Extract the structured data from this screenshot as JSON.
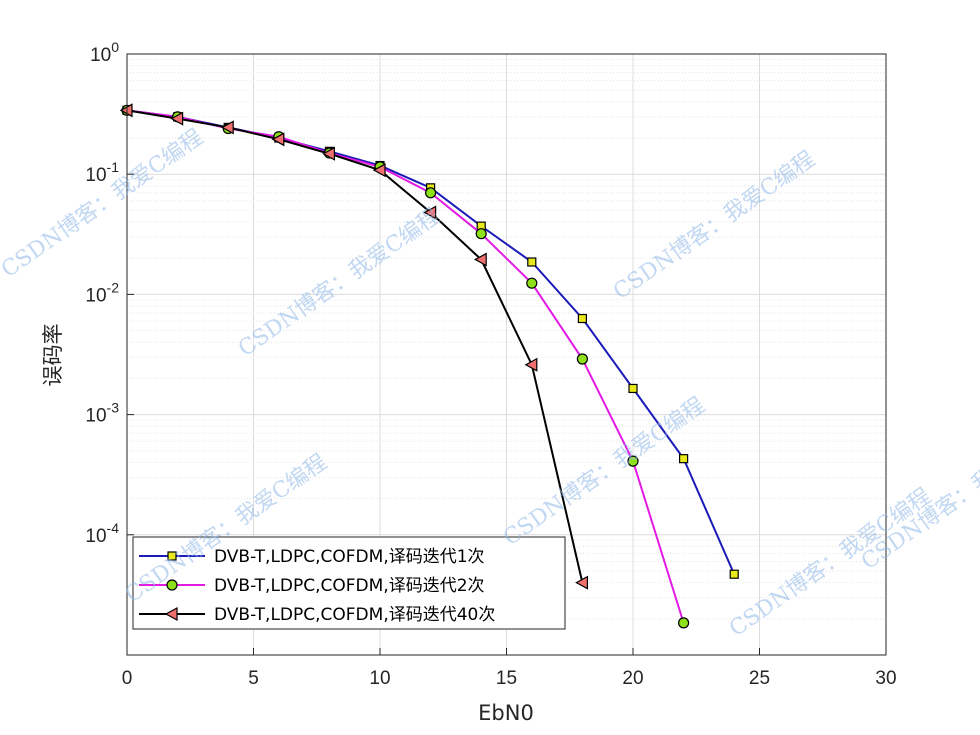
{
  "chart_data": {
    "type": "line",
    "title": "",
    "xlabel": "EbN0",
    "ylabel": "误码率",
    "xlim": [
      0,
      30
    ],
    "ylim": [
      1e-06,
      1
    ],
    "yscale": "log",
    "grid": true,
    "minor_grid": true,
    "legend_position": "bottom-left",
    "x_ticks": [
      "0",
      "5",
      "10",
      "15",
      "20",
      "25",
      "30"
    ],
    "y_ticks": [
      {
        "base": "10",
        "exp": "0"
      },
      {
        "base": "10",
        "exp": "-1"
      },
      {
        "base": "10",
        "exp": "-2"
      },
      {
        "base": "10",
        "exp": "-3"
      },
      {
        "base": "10",
        "exp": "-4"
      }
    ],
    "series": [
      {
        "name": "DVB-T,LDPC,COFDM,译码迭代1次",
        "color": "#1a1ab8",
        "marker": "square",
        "marker_fill": "#e8e81a",
        "x": [
          0,
          2,
          4,
          6,
          8,
          10,
          12,
          14,
          16,
          18,
          20,
          22,
          24
        ],
        "y": [
          0.34,
          0.3,
          0.245,
          0.2,
          0.155,
          0.118,
          0.077,
          0.037,
          0.0186,
          0.0063,
          0.00165,
          0.00043,
          4.7e-05
        ]
      },
      {
        "name": "DVB-T,LDPC,COFDM,译码迭代2次",
        "color": "#e31ae3",
        "marker": "circle",
        "marker_fill": "#8ee01a",
        "x": [
          0,
          2,
          4,
          6,
          8,
          10,
          12,
          14,
          16,
          18,
          20,
          22
        ],
        "y": [
          0.34,
          0.3,
          0.24,
          0.205,
          0.15,
          0.115,
          0.07,
          0.032,
          0.0124,
          0.0029,
          0.00041,
          1.85e-05
        ]
      },
      {
        "name": "DVB-T,LDPC,COFDM,译码迭代40次",
        "color": "#000000",
        "marker": "triangle-left",
        "marker_fill": "#f07070",
        "x": [
          0,
          2,
          4,
          6,
          8,
          10,
          12,
          14,
          16,
          18
        ],
        "y": [
          0.34,
          0.29,
          0.245,
          0.195,
          0.148,
          0.108,
          0.048,
          0.0195,
          0.0026,
          4e-05
        ]
      }
    ]
  },
  "watermarks": [
    "CSDN博客：我爱C编程",
    "CSDN博客：我爱C编程",
    "CSDN博客：我爱C编程",
    "CSDN博客：我爱C编程",
    "CSDN博客：我爱C编程",
    "CSDN博客：我爱C编程",
    "CSDN博客：我爱C编程"
  ]
}
